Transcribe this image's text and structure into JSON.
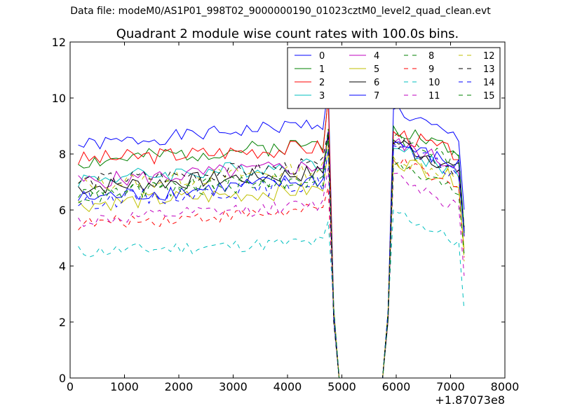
{
  "figure": {
    "supertitle": "Data file: modeM0/AS1P01_998T02_9000000190_01023cztM0_level2_quad_clean.evt"
  },
  "chart_data": {
    "type": "line",
    "title": "Quadrant 2 module wise count rates with 100.0s bins.",
    "xlabel": "",
    "ylabel": "",
    "x_offset_label": "+1.87073e8",
    "xlim": [
      0,
      8000
    ],
    "ylim": [
      0,
      12
    ],
    "xticks": [
      0,
      1000,
      2000,
      3000,
      4000,
      5000,
      6000,
      7000,
      8000
    ],
    "yticks": [
      0,
      2,
      4,
      6,
      8,
      10,
      12
    ],
    "legend_position": "upper right",
    "legend_columns": 4,
    "segment1": {
      "x_start": 150,
      "x_end": 4750,
      "step": 100
    },
    "gap": {
      "x": [
        4850,
        4950,
        5050,
        5750,
        5850,
        5950
      ],
      "after_drop": 2.0
    },
    "segment2": {
      "x_start": 5950,
      "x_end": 7250,
      "step": 100
    },
    "series": [
      {
        "name": "0",
        "color": "#0000ff",
        "style": "solid",
        "base1": 8.3,
        "slope1": 0.00018,
        "peak": 10.4,
        "base2": 9.6,
        "slope2": -0.0009,
        "amp": 0.25,
        "seed": 1
      },
      {
        "name": "1",
        "color": "#008000",
        "style": "solid",
        "base1": 7.7,
        "slope1": 0.00015,
        "peak": 10.0,
        "base2": 9.0,
        "slope2": -0.0008,
        "amp": 0.3,
        "seed": 2
      },
      {
        "name": "2",
        "color": "#ff0000",
        "style": "solid",
        "base1": 7.8,
        "slope1": 0.0001,
        "peak": 10.0,
        "base2": 8.8,
        "slope2": -0.0007,
        "amp": 0.3,
        "seed": 3
      },
      {
        "name": "3",
        "color": "#00bfbf",
        "style": "solid",
        "base1": 7.1,
        "slope1": 0.00012,
        "peak": 8.6,
        "base2": 8.2,
        "slope2": -0.0007,
        "amp": 0.3,
        "seed": 4
      },
      {
        "name": "4",
        "color": "#bf00bf",
        "style": "solid",
        "base1": 7.0,
        "slope1": 0.00013,
        "peak": 8.8,
        "base2": 8.4,
        "slope2": -0.0007,
        "amp": 0.3,
        "seed": 5
      },
      {
        "name": "5",
        "color": "#bfbf00",
        "style": "solid",
        "base1": 6.2,
        "slope1": 0.00012,
        "peak": 8.2,
        "base2": 7.8,
        "slope2": -0.0006,
        "amp": 0.3,
        "seed": 6
      },
      {
        "name": "6",
        "color": "#000000",
        "style": "solid",
        "base1": 6.8,
        "slope1": 0.00012,
        "peak": 8.6,
        "base2": 8.5,
        "slope2": -0.0009,
        "amp": 0.3,
        "seed": 7
      },
      {
        "name": "7",
        "color": "#0000ff",
        "style": "solid",
        "base1": 6.4,
        "slope1": 0.00015,
        "peak": 8.8,
        "base2": 8.4,
        "slope2": -0.0007,
        "amp": 0.3,
        "seed": 8
      },
      {
        "name": "8",
        "color": "#008000",
        "style": "dashed",
        "base1": 6.6,
        "slope1": 0.00012,
        "peak": 8.9,
        "base2": 8.6,
        "slope2": -0.0007,
        "amp": 0.3,
        "seed": 9
      },
      {
        "name": "9",
        "color": "#ff0000",
        "style": "dashed",
        "base1": 5.5,
        "slope1": 0.00011,
        "peak": 6.8,
        "base2": 7.8,
        "slope2": -0.0009,
        "amp": 0.25,
        "seed": 10
      },
      {
        "name": "10",
        "color": "#00bfbf",
        "style": "dashed",
        "base1": 4.5,
        "slope1": 8e-05,
        "peak": 5.6,
        "base2": 6.0,
        "slope2": -0.001,
        "amp": 0.25,
        "seed": 11
      },
      {
        "name": "11",
        "color": "#bf00bf",
        "style": "dashed",
        "base1": 5.6,
        "slope1": 0.00013,
        "peak": 7.5,
        "base2": 7.3,
        "slope2": -0.001,
        "amp": 0.25,
        "seed": 12
      },
      {
        "name": "12",
        "color": "#bfbf00",
        "style": "dashed",
        "base1": 6.9,
        "slope1": 0.00012,
        "peak": 8.5,
        "base2": 7.9,
        "slope2": -0.0006,
        "amp": 0.3,
        "seed": 13
      },
      {
        "name": "13",
        "color": "#000000",
        "style": "dashed",
        "base1": 7.0,
        "slope1": 0.00013,
        "peak": 8.8,
        "base2": 8.4,
        "slope2": -0.0008,
        "amp": 0.3,
        "seed": 14
      },
      {
        "name": "14",
        "color": "#0000ff",
        "style": "dashed",
        "base1": 6.3,
        "slope1": 0.00014,
        "peak": 8.2,
        "base2": 8.3,
        "slope2": -0.0009,
        "amp": 0.3,
        "seed": 15
      },
      {
        "name": "15",
        "color": "#008000",
        "style": "dashed",
        "base1": 6.5,
        "slope1": 0.00013,
        "peak": 8.7,
        "base2": 7.6,
        "slope2": -0.0008,
        "amp": 0.3,
        "seed": 16
      }
    ]
  }
}
